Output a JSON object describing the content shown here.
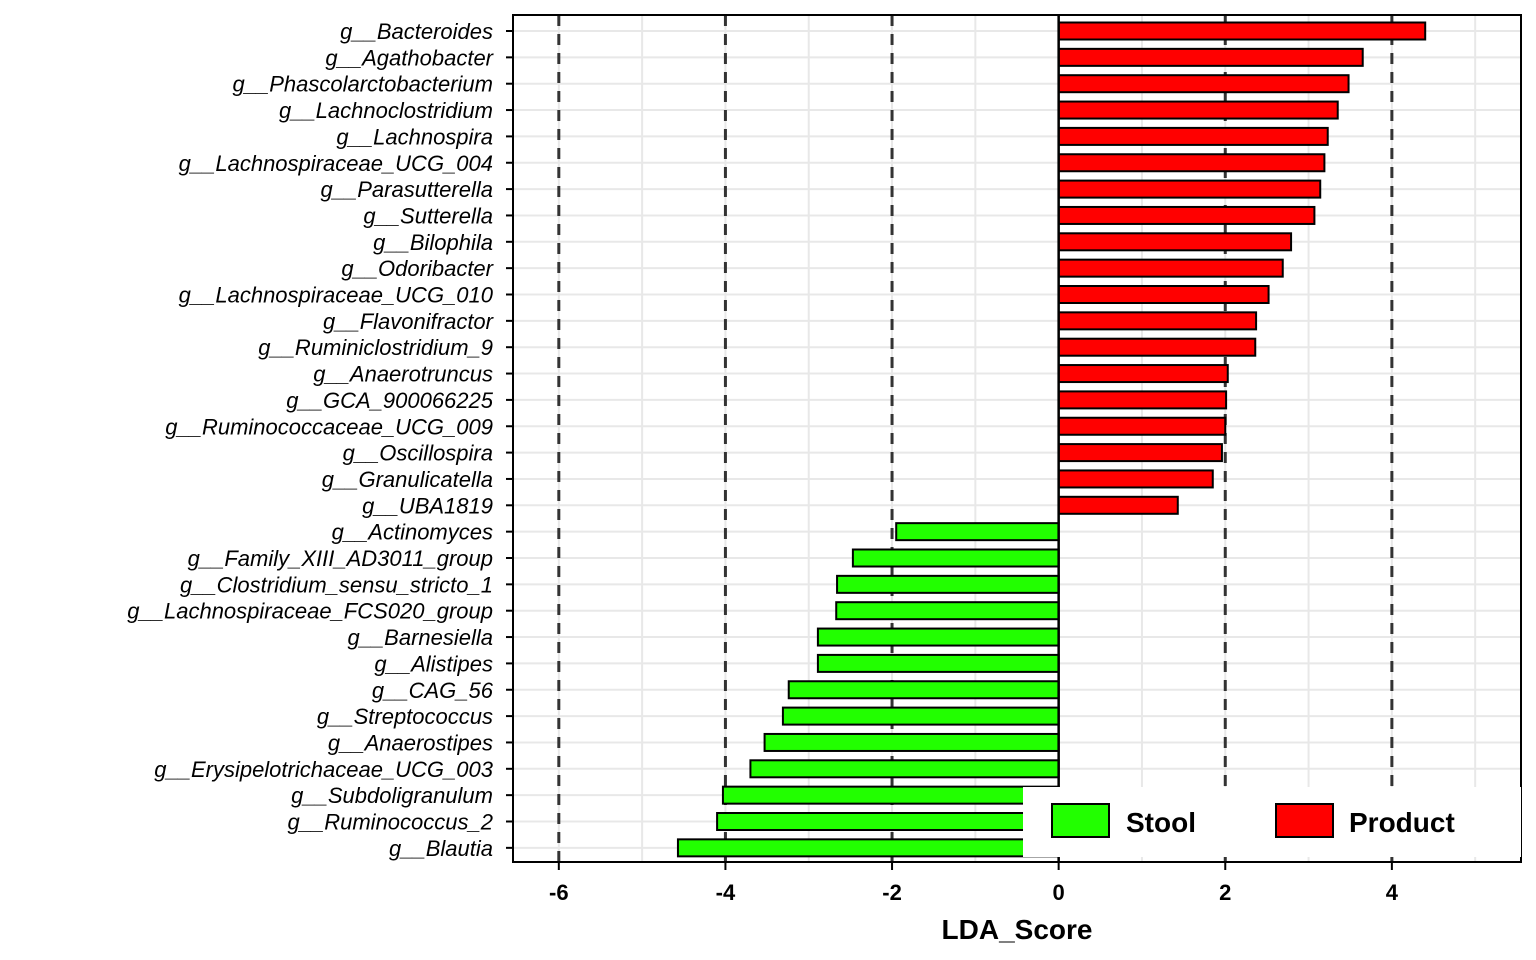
{
  "chart_data": {
    "type": "bar",
    "orientation": "horizontal",
    "xlabel": "LDA_Score",
    "ylabel": "",
    "xlim": [
      -6.55,
      5.55
    ],
    "x_ticks": [
      -6,
      -4,
      -2,
      0,
      2,
      4
    ],
    "x_tick_labels": [
      "-6",
      "-4",
      "-2",
      "0",
      "2",
      "4"
    ],
    "dashed_reference_lines": [
      -6,
      -4,
      -2,
      2,
      4
    ],
    "grid": true,
    "legend_position": "bottom-right",
    "groups": [
      {
        "name": "Stool",
        "color": "#22ff00"
      },
      {
        "name": "Product",
        "color": "#ff0000"
      }
    ],
    "categories": [
      "g__Bacteroides",
      "g__Agathobacter",
      "g__Phascolarctobacterium",
      "g__Lachnoclostridium",
      "g__Lachnospira",
      "g__Lachnospiraceae_UCG_004",
      "g__Parasutterella",
      "g__Sutterella",
      "g__Bilophila",
      "g__Odoribacter",
      "g__Lachnospiraceae_UCG_010",
      "g__Flavonifractor",
      "g__Ruminiclostridium_9",
      "g__Anaerotruncus",
      "g__GCA_900066225",
      "g__Ruminococcaceae_UCG_009",
      "g__Oscillospira",
      "g__Granulicatella",
      "g__UBA1819",
      "g__Actinomyces",
      "g__Family_XIII_AD3011_group",
      "g__Clostridium_sensu_stricto_1",
      "g__Lachnospiraceae_FCS020_group",
      "g__Barnesiella",
      "g__Alistipes",
      "g__CAG_56",
      "g__Streptococcus",
      "g__Anaerostipes",
      "g__Erysipelotrichaceae_UCG_003",
      "g__Subdoligranulum",
      "g__Ruminococcus_2",
      "g__Blautia"
    ],
    "values": [
      4.4,
      3.65,
      3.48,
      3.35,
      3.23,
      3.19,
      3.14,
      3.07,
      2.79,
      2.69,
      2.52,
      2.37,
      2.36,
      2.03,
      2.01,
      2.0,
      1.96,
      1.85,
      1.43,
      -1.95,
      -2.47,
      -2.66,
      -2.67,
      -2.89,
      -2.89,
      -3.24,
      -3.31,
      -3.53,
      -3.7,
      -4.03,
      -4.1,
      -4.57
    ],
    "group_of": [
      "Product",
      "Product",
      "Product",
      "Product",
      "Product",
      "Product",
      "Product",
      "Product",
      "Product",
      "Product",
      "Product",
      "Product",
      "Product",
      "Product",
      "Product",
      "Product",
      "Product",
      "Product",
      "Product",
      "Stool",
      "Stool",
      "Stool",
      "Stool",
      "Stool",
      "Stool",
      "Stool",
      "Stool",
      "Stool",
      "Stool",
      "Stool",
      "Stool",
      "Stool"
    ]
  }
}
